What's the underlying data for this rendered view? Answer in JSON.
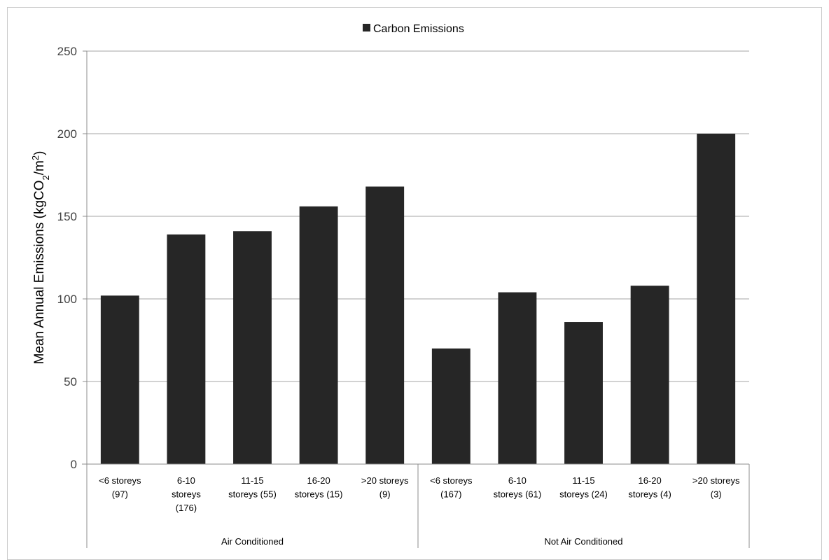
{
  "chart_data": {
    "type": "bar",
    "legend": {
      "label": "Carbon Emissions",
      "color": "#262626",
      "placement": "top-center"
    },
    "ylabel": {
      "main": "Mean Annual Emissions (kgCO",
      "sub": "2",
      "mid": "/m",
      "sup": "2",
      "end": ")"
    },
    "ylim": [
      0,
      250
    ],
    "yticks": [
      0,
      50,
      100,
      150,
      200,
      250
    ],
    "grid": true,
    "bar_color": "#262626",
    "groups": [
      {
        "name": "Air Conditioned",
        "categories": [
          {
            "lines": [
              "<6 storeys",
              "(97)"
            ],
            "value": 102
          },
          {
            "lines": [
              "6-10",
              "storeys",
              "(176)"
            ],
            "value": 139
          },
          {
            "lines": [
              "11-15",
              "storeys (55)"
            ],
            "value": 141
          },
          {
            "lines": [
              "16-20",
              "storeys (15)"
            ],
            "value": 156
          },
          {
            "lines": [
              ">20 storeys",
              "(9)"
            ],
            "value": 168
          }
        ]
      },
      {
        "name": "Not Air Conditioned",
        "categories": [
          {
            "lines": [
              "<6 storeys",
              "(167)"
            ],
            "value": 70
          },
          {
            "lines": [
              "6-10",
              "storeys (61)"
            ],
            "value": 104
          },
          {
            "lines": [
              "11-15",
              "storeys (24)"
            ],
            "value": 86
          },
          {
            "lines": [
              "16-20",
              "storeys (4)"
            ],
            "value": 108
          },
          {
            "lines": [
              ">20 storeys",
              "(3)"
            ],
            "value": 200
          }
        ]
      }
    ]
  }
}
